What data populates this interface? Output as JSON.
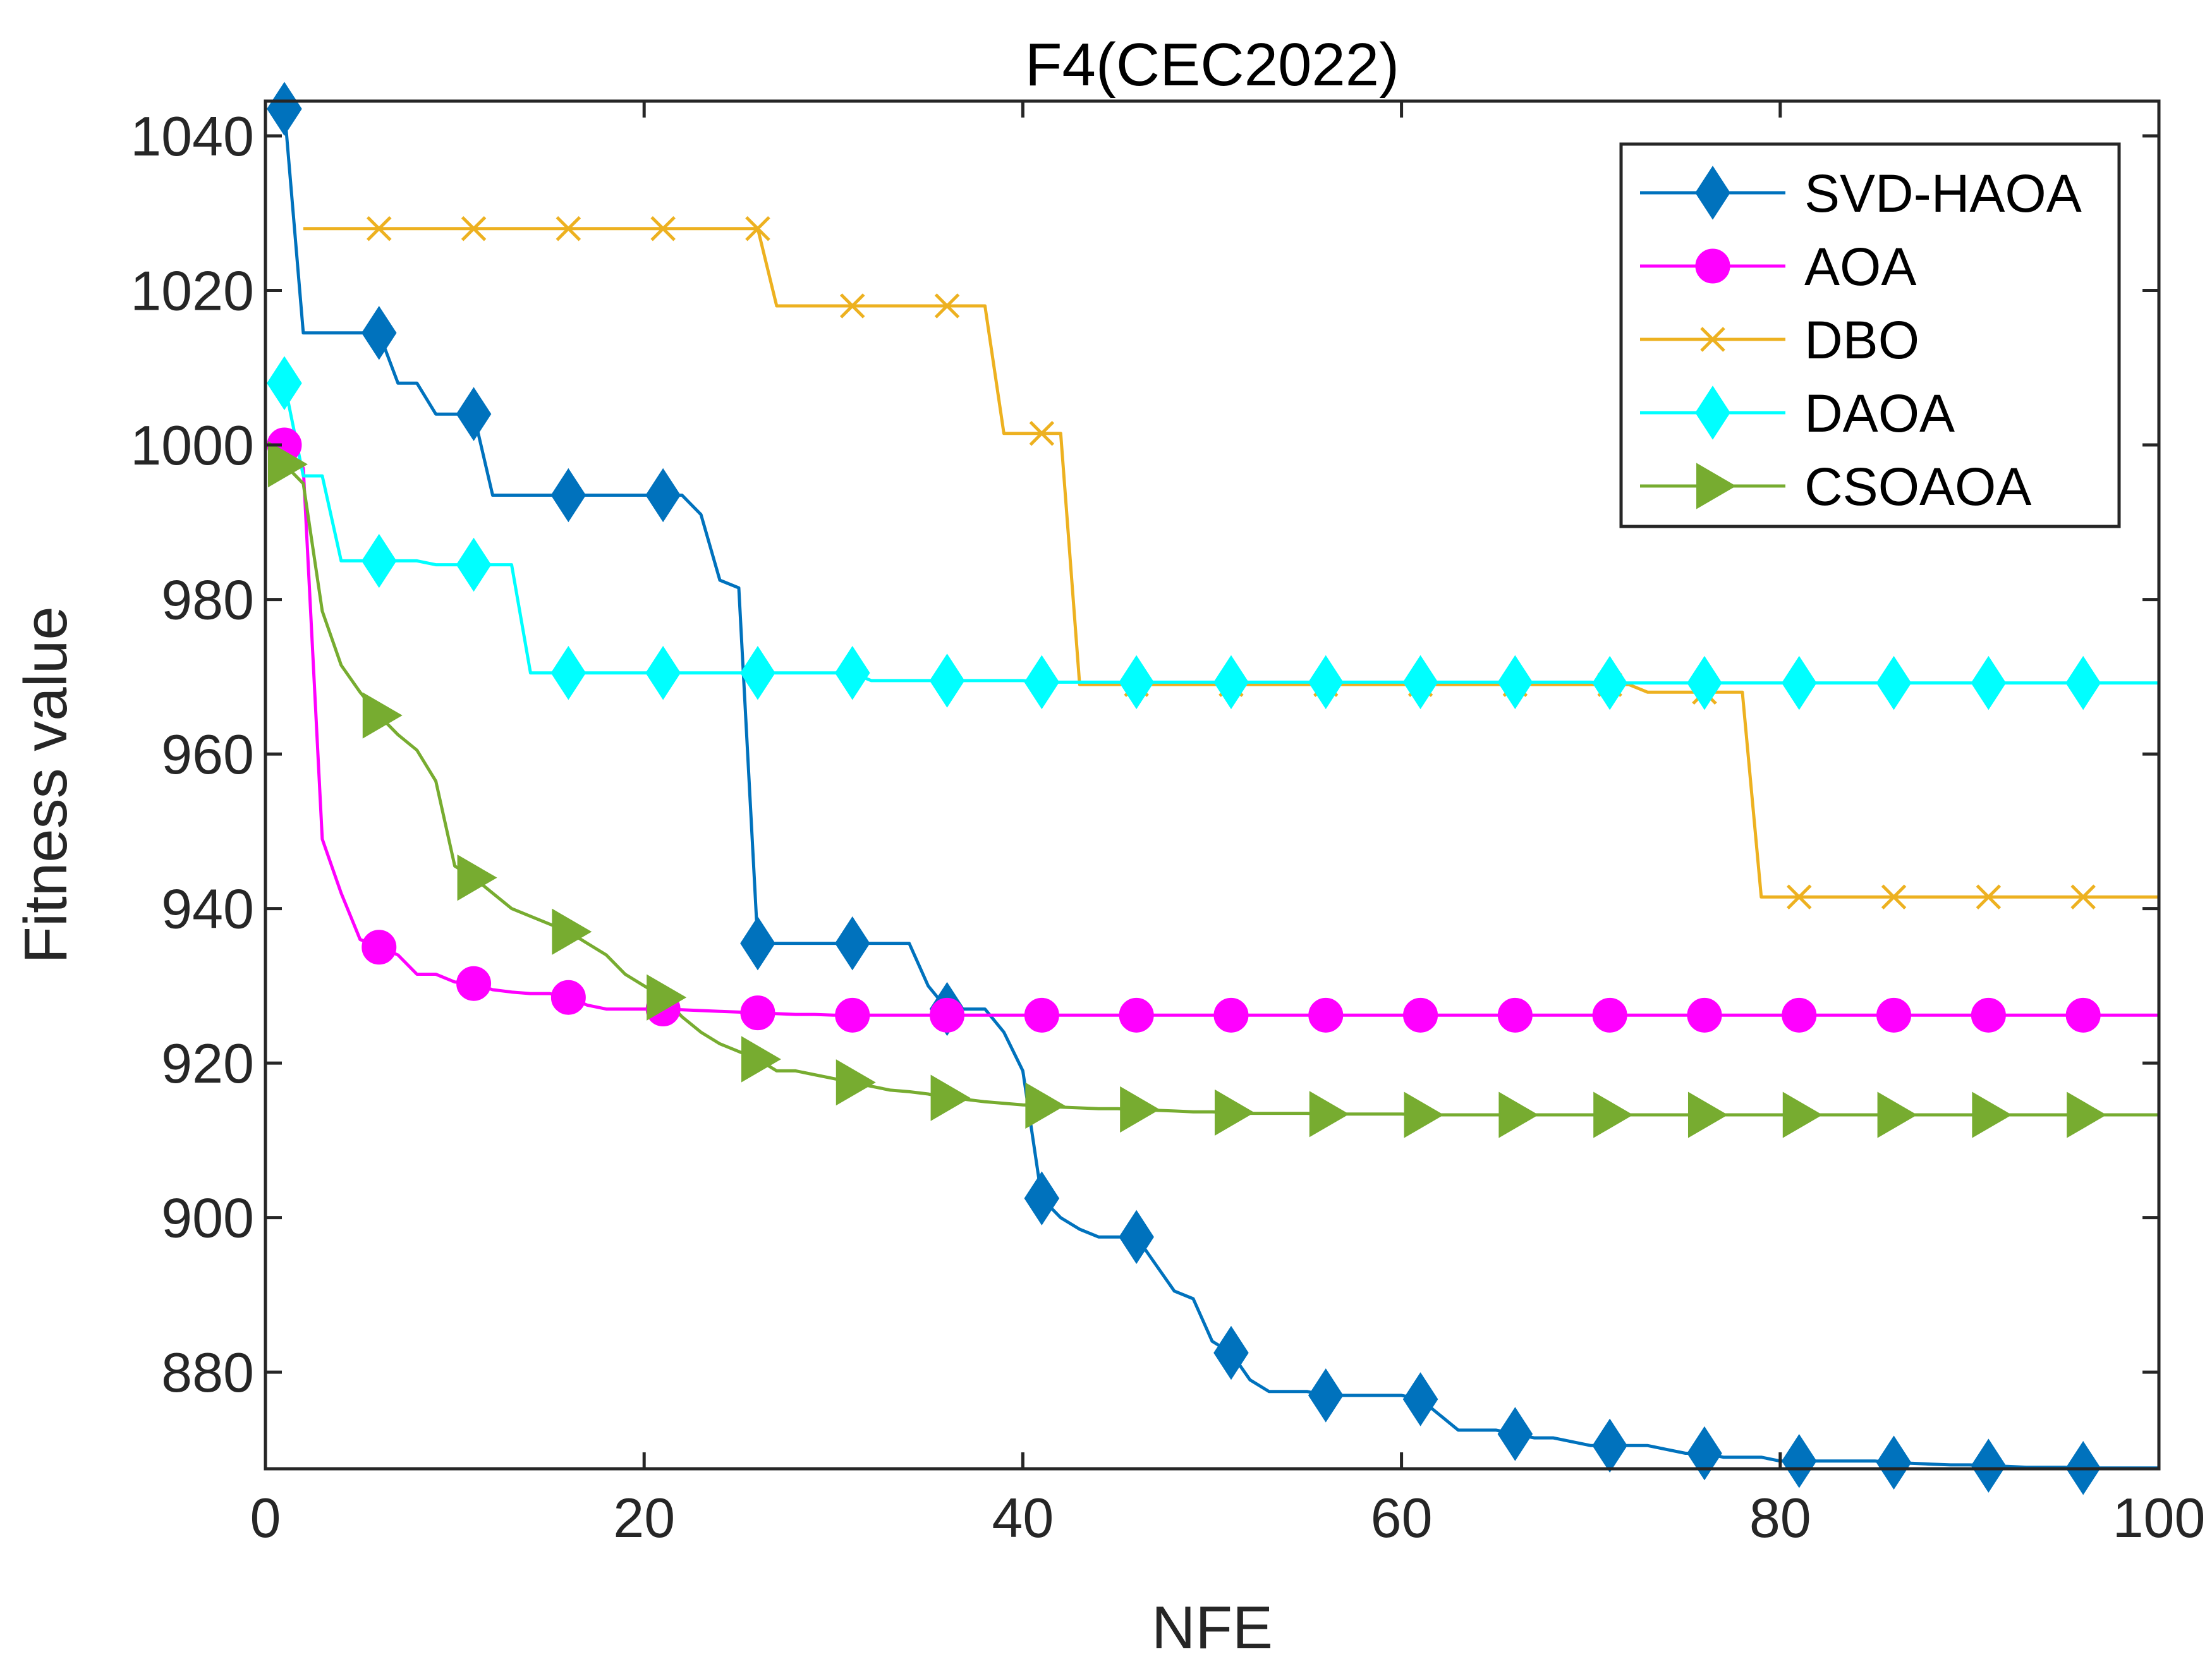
{
  "chart_data": {
    "type": "line",
    "title": "F4(CEC2022)",
    "xlabel": "NFE",
    "ylabel": "Fitness value",
    "xlim": [
      0,
      100
    ],
    "ylim": [
      867.5,
      1044.5
    ],
    "xticks": [
      0,
      20,
      40,
      60,
      80,
      100
    ],
    "yticks": [
      880,
      900,
      920,
      940,
      960,
      980,
      1000,
      1020,
      1040
    ],
    "grid": false,
    "legend_position": "top-right",
    "series": [
      {
        "name": "SVD-HAOA",
        "color": "#0072BD",
        "marker": "diamond",
        "x": [
          1,
          2,
          3,
          4,
          5,
          6,
          7,
          8,
          9,
          10,
          11,
          12,
          13,
          14,
          15,
          16,
          17,
          18,
          19,
          20,
          21,
          22,
          23,
          24,
          25,
          26,
          27,
          28,
          29,
          30,
          31,
          32,
          33,
          34,
          35,
          36,
          37,
          38,
          39,
          40,
          41,
          42,
          43,
          44,
          45,
          46,
          47,
          48,
          49,
          50,
          51,
          52,
          53,
          54,
          55,
          56,
          57,
          58,
          59,
          60,
          61,
          62,
          63,
          64,
          65,
          66,
          67,
          68,
          69,
          70,
          71,
          72,
          73,
          74,
          75,
          76,
          77,
          78,
          79,
          80,
          81,
          82,
          83,
          84,
          85,
          86,
          87,
          88,
          89,
          90,
          91,
          92,
          93,
          94,
          95,
          96,
          97,
          98,
          99,
          100
        ],
        "y": [
          1043.5,
          1014.5,
          1014.5,
          1014.5,
          1014.5,
          1014.5,
          1008,
          1008,
          1004,
          1004,
          1004,
          993.5,
          993.5,
          993.5,
          993.5,
          993.5,
          993.5,
          993.5,
          993.5,
          993.5,
          993.5,
          993.5,
          991,
          982.5,
          981.5,
          935.5,
          935.5,
          935.5,
          935.5,
          935.5,
          935.5,
          935.5,
          935.5,
          935.5,
          930,
          927,
          927,
          927,
          924,
          919,
          902.5,
          900,
          898.5,
          897.5,
          897.5,
          897.5,
          894,
          890.5,
          889.5,
          884,
          882.5,
          879,
          877.5,
          877.5,
          877.5,
          877,
          877,
          877,
          877,
          877,
          876.5,
          874.5,
          872.5,
          872.5,
          872.5,
          872,
          871.5,
          871.5,
          871,
          870.5,
          870.5,
          870.5,
          870.5,
          870,
          869.5,
          869.5,
          869,
          869,
          869,
          868.5,
          868.5,
          868.5,
          868.5,
          868.5,
          868.5,
          868.3,
          868.2,
          868.1,
          868,
          868,
          867.9,
          867.8,
          867.7,
          867.7,
          867.7,
          867.6,
          867.6,
          867.6,
          867.6,
          867.6
        ],
        "marker_indices": [
          0,
          5,
          10,
          15,
          20,
          25,
          30,
          35,
          40,
          45,
          50,
          55,
          60,
          65,
          70,
          75,
          80,
          85,
          90,
          95
        ]
      },
      {
        "name": "AOA",
        "color": "#FF00FF",
        "marker": "circle",
        "x": [
          1,
          2,
          3,
          4,
          5,
          6,
          7,
          8,
          9,
          10,
          11,
          12,
          13,
          14,
          15,
          16,
          17,
          18,
          19,
          20,
          21,
          22,
          23,
          24,
          25,
          26,
          27,
          28,
          29,
          30,
          31,
          32,
          33,
          34,
          35,
          36,
          37,
          38,
          39,
          40,
          41,
          42,
          43,
          44,
          45,
          46,
          47,
          48,
          49,
          50,
          51,
          52,
          53,
          54,
          55,
          56,
          57,
          58,
          59,
          60,
          61,
          62,
          63,
          64,
          65,
          66,
          67,
          68,
          69,
          70,
          71,
          72,
          73,
          74,
          75,
          76,
          77,
          78,
          79,
          80,
          81,
          82,
          83,
          84,
          85,
          86,
          87,
          88,
          89,
          90,
          91,
          92,
          93,
          94,
          95,
          96,
          97,
          98,
          99,
          100
        ],
        "y": [
          1000,
          997,
          949,
          942,
          936,
          935,
          934,
          931.5,
          931.5,
          930.5,
          930.3,
          929.5,
          929.2,
          929,
          929,
          928.5,
          927.5,
          927,
          927,
          927,
          927,
          926.9,
          926.8,
          926.7,
          926.6,
          926.5,
          926.4,
          926.3,
          926.3,
          926.2,
          926.2,
          926.2,
          926.2,
          926.2,
          926.2,
          926.2,
          926.2,
          926.2,
          926.2,
          926.2,
          926.2,
          926.2,
          926.2,
          926.2,
          926.2,
          926.2,
          926.2,
          926.2,
          926.2,
          926.2,
          926.2,
          926.2,
          926.2,
          926.2,
          926.2,
          926.2,
          926.2,
          926.2,
          926.2,
          926.2,
          926.2,
          926.2,
          926.2,
          926.2,
          926.2,
          926.2,
          926.2,
          926.2,
          926.2,
          926.2,
          926.2,
          926.2,
          926.2,
          926.2,
          926.2,
          926.2,
          926.2,
          926.2,
          926.2,
          926.2,
          926.2,
          926.2,
          926.2,
          926.2,
          926.2,
          926.2,
          926.2,
          926.2,
          926.2,
          926.2,
          926.2,
          926.2,
          926.2,
          926.2,
          926.2,
          926.2,
          926.2,
          926.2,
          926.2,
          926.2
        ],
        "marker_indices": [
          0,
          5,
          10,
          15,
          20,
          25,
          30,
          35,
          40,
          45,
          50,
          55,
          60,
          65,
          70,
          75,
          80,
          85,
          90,
          95
        ]
      },
      {
        "name": "DBO",
        "color": "#EDB120",
        "marker": "x",
        "x": [
          2,
          3,
          4,
          5,
          6,
          7,
          8,
          9,
          10,
          11,
          12,
          13,
          14,
          15,
          16,
          17,
          18,
          19,
          20,
          21,
          22,
          23,
          24,
          25,
          26,
          27,
          28,
          29,
          30,
          31,
          32,
          33,
          34,
          35,
          36,
          37,
          38,
          39,
          40,
          41,
          42,
          43,
          44,
          45,
          46,
          47,
          48,
          49,
          50,
          51,
          52,
          53,
          54,
          55,
          56,
          57,
          58,
          59,
          60,
          61,
          62,
          63,
          64,
          65,
          66,
          67,
          68,
          69,
          70,
          71,
          72,
          73,
          74,
          75,
          76,
          77,
          78,
          79,
          80,
          81,
          82,
          83,
          84,
          85,
          86,
          87,
          88,
          89,
          90,
          91,
          92,
          93,
          94,
          95,
          96,
          97,
          98,
          99,
          100
        ],
        "y": [
          1028,
          1028,
          1028,
          1028,
          1028,
          1028,
          1028,
          1028,
          1028,
          1028,
          1028,
          1028,
          1028,
          1028,
          1028,
          1028,
          1028,
          1028,
          1028,
          1028,
          1028,
          1028,
          1028,
          1028,
          1028,
          1018,
          1018,
          1018,
          1018,
          1018,
          1018,
          1018,
          1018,
          1018,
          1018,
          1018,
          1018,
          1001.5,
          1001.5,
          1001.5,
          1001.5,
          969,
          969,
          969,
          969,
          969,
          969,
          969,
          969,
          969,
          969,
          969,
          969,
          969,
          969,
          969,
          969,
          969,
          969,
          969,
          969,
          969,
          969,
          969,
          969,
          969,
          969,
          969,
          969,
          969,
          969,
          968,
          968,
          968,
          968,
          968,
          968,
          941.5,
          941.5,
          941.5,
          941.5,
          941.5,
          941.5,
          941.5,
          941.5,
          941.5,
          941.5,
          941.5,
          941.5,
          941.5,
          941.5,
          941.5,
          941.5,
          941.5,
          941.5,
          941.5,
          941.5,
          941.5,
          941.5
        ],
        "marker_indices": [
          4,
          9,
          14,
          19,
          24,
          29,
          34,
          39,
          44,
          49,
          54,
          59,
          64,
          69,
          74,
          79,
          84,
          89,
          94
        ]
      },
      {
        "name": "DAOA",
        "color": "#00FFFF",
        "marker": "diamond",
        "x": [
          1,
          2,
          3,
          4,
          5,
          6,
          7,
          8,
          9,
          10,
          11,
          12,
          13,
          14,
          15,
          16,
          17,
          18,
          19,
          20,
          21,
          22,
          23,
          24,
          25,
          26,
          27,
          28,
          29,
          30,
          31,
          32,
          33,
          34,
          35,
          36,
          37,
          38,
          39,
          40,
          41,
          42,
          43,
          44,
          45,
          46,
          47,
          48,
          49,
          50,
          51,
          52,
          53,
          54,
          55,
          56,
          57,
          58,
          59,
          60,
          61,
          62,
          63,
          64,
          65,
          66,
          67,
          68,
          69,
          70,
          71,
          72,
          73,
          74,
          75,
          76,
          77,
          78,
          79,
          80,
          81,
          82,
          83,
          84,
          85,
          86,
          87,
          88,
          89,
          90,
          91,
          92,
          93,
          94,
          95,
          96,
          97,
          98,
          99,
          100
        ],
        "y": [
          1008,
          996,
          996,
          985,
          985,
          985,
          985,
          985,
          984.5,
          984.5,
          984.5,
          984.5,
          984.5,
          970.5,
          970.5,
          970.5,
          970.5,
          970.5,
          970.5,
          970.5,
          970.5,
          970.5,
          970.5,
          970.5,
          970.5,
          970.5,
          970.5,
          970.5,
          970.5,
          970.5,
          970.5,
          969.5,
          969.5,
          969.5,
          969.5,
          969.5,
          969.5,
          969.5,
          969.5,
          969.5,
          969.3,
          969.3,
          969.3,
          969.3,
          969.3,
          969.3,
          969.3,
          969.3,
          969.3,
          969.3,
          969.3,
          969.3,
          969.3,
          969.3,
          969.3,
          969.3,
          969.3,
          969.3,
          969.3,
          969.3,
          969.3,
          969.3,
          969.3,
          969.3,
          969.3,
          969.3,
          969.3,
          969.3,
          969.3,
          969.3,
          969.2,
          969.2,
          969.2,
          969.2,
          969.2,
          969.2,
          969.2,
          969.2,
          969.2,
          969.2,
          969.2,
          969.2,
          969.2,
          969.2,
          969.2,
          969.2,
          969.2,
          969.2,
          969.2,
          969.2,
          969.2,
          969.2,
          969.2,
          969.2,
          969.2,
          969.2,
          969.2,
          969.2,
          969.2,
          969.2
        ],
        "marker_indices": [
          0,
          5,
          10,
          15,
          20,
          25,
          30,
          35,
          40,
          45,
          50,
          55,
          60,
          65,
          70,
          75,
          80,
          85,
          90,
          95
        ]
      },
      {
        "name": "CSOAOA",
        "color": "#77AC30",
        "marker": "triangle-right",
        "x": [
          1,
          2,
          3,
          4,
          5,
          6,
          7,
          8,
          9,
          10,
          11,
          12,
          13,
          14,
          15,
          16,
          17,
          18,
          19,
          20,
          21,
          22,
          23,
          24,
          25,
          26,
          27,
          28,
          29,
          30,
          31,
          32,
          33,
          34,
          35,
          36,
          37,
          38,
          39,
          40,
          41,
          42,
          43,
          44,
          45,
          46,
          47,
          48,
          49,
          50,
          51,
          52,
          53,
          54,
          55,
          56,
          57,
          58,
          59,
          60,
          61,
          62,
          63,
          64,
          65,
          66,
          67,
          68,
          69,
          70,
          71,
          72,
          73,
          74,
          75,
          76,
          77,
          78,
          79,
          80,
          81,
          82,
          83,
          84,
          85,
          86,
          87,
          88,
          89,
          90,
          91,
          92,
          93,
          94,
          95,
          96,
          97,
          98,
          99,
          100
        ],
        "y": [
          997.5,
          995,
          978.5,
          971.5,
          968,
          965,
          962.5,
          960.5,
          956.5,
          945.5,
          944,
          942,
          940,
          939,
          938,
          937,
          935.5,
          934,
          931.5,
          930,
          928.5,
          926,
          924,
          922.5,
          921.5,
          920.5,
          919,
          919,
          918.5,
          918,
          917.5,
          917,
          916.5,
          916.3,
          916,
          915.5,
          915.3,
          915,
          914.8,
          914.6,
          914.5,
          914.3,
          914.2,
          914.1,
          914.1,
          914,
          913.9,
          913.8,
          913.7,
          913.7,
          913.6,
          913.5,
          913.5,
          913.5,
          913.5,
          913.4,
          913.4,
          913.4,
          913.4,
          913.4,
          913.3,
          913.3,
          913.3,
          913.3,
          913.3,
          913.3,
          913.3,
          913.3,
          913.3,
          913.3,
          913.3,
          913.3,
          913.3,
          913.3,
          913.3,
          913.3,
          913.3,
          913.3,
          913.3,
          913.3,
          913.3,
          913.3,
          913.3,
          913.3,
          913.3,
          913.3,
          913.3,
          913.3,
          913.3,
          913.3,
          913.3,
          913.3,
          913.3,
          913.3,
          913.3,
          913.3,
          913.3,
          913.3,
          913.3,
          913.3
        ],
        "marker_indices": [
          0,
          5,
          10,
          15,
          20,
          25,
          30,
          35,
          40,
          45,
          50,
          55,
          60,
          65,
          70,
          75,
          80,
          85,
          90,
          95
        ]
      }
    ]
  }
}
